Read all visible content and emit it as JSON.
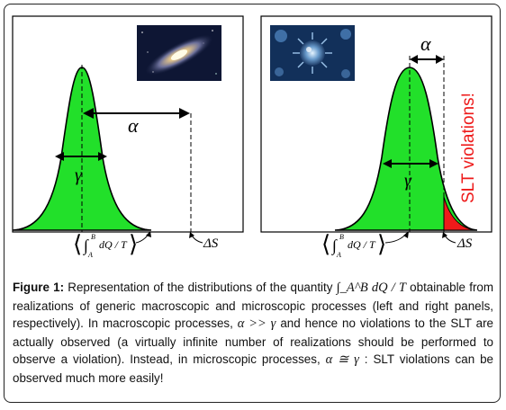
{
  "figure": {
    "alpha": "α",
    "gamma": "γ",
    "delta_s": "ΔS",
    "integral_expr": "dQ / T",
    "int_upper": "B",
    "int_lower": "A",
    "violation_text": "SLT violations!",
    "colors": {
      "fill": "#22e02a",
      "violation": "#ee1a1a",
      "stroke": "#000000"
    }
  },
  "caption": {
    "label": "Figure 1:",
    "text1": " Representation of the distributions of the quantity ",
    "math1": "∫_A^B dQ / T",
    "text2": " obtainable from realizations of generic macroscopic and microscopic processes (left and right panels, respectively). In macroscopic processes, ",
    "math2": "α >> γ",
    "text3": " and hence no violations to the SLT are actually observed (a virtually infinite number of realizations should be performed to observe a violation). Instead, in microscopic processes, ",
    "math3": "α ≅ γ",
    "text4": " : SLT violations can be observed much more easily!"
  }
}
